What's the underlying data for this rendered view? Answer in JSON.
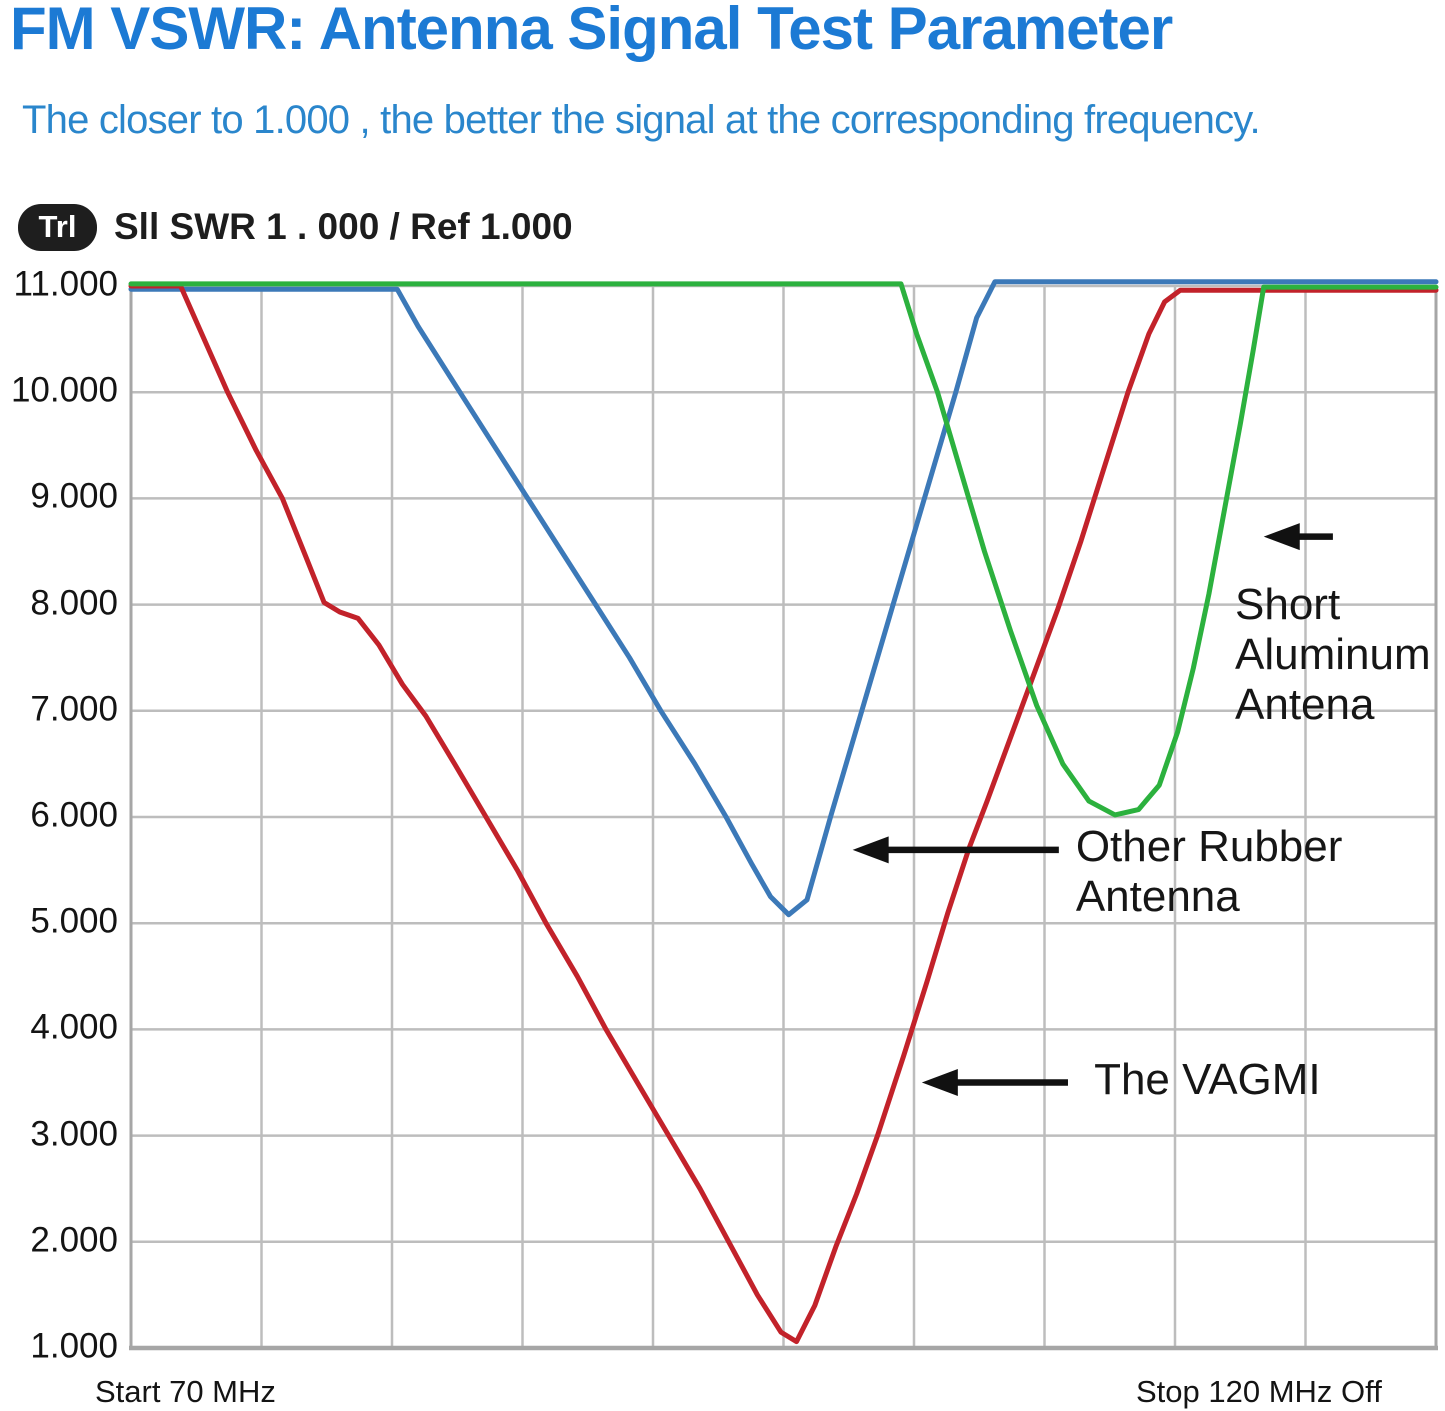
{
  "header": {
    "title": "FM VSWR: Antenna Signal Test Parameter",
    "subtitle": "The closer to 1.000 , the better the signal at the corresponding frequency.",
    "trace_badge": "Trl",
    "trace_info": "Sll SWR 1 . 000 / Ref 1.000"
  },
  "chart_data": {
    "type": "line",
    "title": "FM VSWR: Antenna Signal Test Parameter",
    "x_axis": {
      "unit": "MHz",
      "range": [
        70,
        120
      ],
      "gridline_step": 5,
      "label_start": "Start 70 MHz",
      "label_stop": "Stop 120 MHz Off"
    },
    "y_axis": {
      "range": [
        1,
        11
      ],
      "gridline_step": 1,
      "tick_labels": [
        "11.000",
        "10.000",
        "9.000",
        "8.000",
        "7.000",
        "6.000",
        "5.000",
        "4.000",
        "3.000",
        "2.000",
        "1.000"
      ]
    },
    "grid": true,
    "colors": {
      "grid": "#bdbdbd",
      "axis": "#a6a6a6",
      "annotation": "#111111"
    },
    "series": [
      {
        "id": "other-rubber-antenna",
        "name": "Other Rubber Antenna",
        "color": "#3c79b8",
        "points": [
          [
            70,
            10.97
          ],
          [
            80.2,
            10.97
          ],
          [
            81.0,
            10.62
          ],
          [
            82.6,
            10.0
          ],
          [
            83.9,
            9.5
          ],
          [
            85.2,
            9.0
          ],
          [
            86.5,
            8.5
          ],
          [
            87.8,
            8.0
          ],
          [
            89.1,
            7.5
          ],
          [
            90.3,
            7.0
          ],
          [
            91.6,
            6.5
          ],
          [
            92.8,
            6.0
          ],
          [
            93.8,
            5.55
          ],
          [
            94.5,
            5.25
          ],
          [
            95.2,
            5.08
          ],
          [
            95.9,
            5.22
          ],
          [
            96.8,
            6.0
          ],
          [
            98.0,
            7.0
          ],
          [
            99.2,
            8.0
          ],
          [
            100.4,
            9.0
          ],
          [
            101.6,
            10.0
          ],
          [
            102.4,
            10.7
          ],
          [
            103.1,
            11.04
          ],
          [
            120,
            11.04
          ]
        ]
      },
      {
        "id": "the-vagmi",
        "name": "The VAGMI",
        "color": "#c2222a",
        "points": [
          [
            70,
            11.0
          ],
          [
            71.9,
            11.0
          ],
          [
            73.7,
            10.0
          ],
          [
            74.8,
            9.45
          ],
          [
            75.8,
            9.0
          ],
          [
            76.7,
            8.45
          ],
          [
            77.4,
            8.02
          ],
          [
            78.0,
            7.93
          ],
          [
            78.7,
            7.87
          ],
          [
            79.5,
            7.62
          ],
          [
            80.4,
            7.25
          ],
          [
            81.3,
            6.95
          ],
          [
            82.4,
            6.5
          ],
          [
            83.6,
            6.0
          ],
          [
            84.8,
            5.5
          ],
          [
            85.9,
            5.0
          ],
          [
            87.1,
            4.5
          ],
          [
            88.2,
            4.0
          ],
          [
            89.4,
            3.5
          ],
          [
            90.6,
            3.0
          ],
          [
            91.8,
            2.5
          ],
          [
            92.9,
            2.0
          ],
          [
            94.0,
            1.5
          ],
          [
            94.9,
            1.15
          ],
          [
            95.5,
            1.06
          ],
          [
            96.2,
            1.4
          ],
          [
            97.0,
            1.95
          ],
          [
            97.8,
            2.45
          ],
          [
            98.6,
            3.0
          ],
          [
            99.6,
            3.75
          ],
          [
            100.5,
            4.45
          ],
          [
            101.3,
            5.1
          ],
          [
            102.1,
            5.7
          ],
          [
            102.8,
            6.15
          ],
          [
            103.7,
            6.75
          ],
          [
            104.6,
            7.35
          ],
          [
            105.5,
            7.95
          ],
          [
            106.4,
            8.6
          ],
          [
            107.3,
            9.3
          ],
          [
            108.2,
            10.0
          ],
          [
            109.0,
            10.55
          ],
          [
            109.6,
            10.85
          ],
          [
            110.2,
            10.96
          ],
          [
            120,
            10.96
          ]
        ]
      },
      {
        "id": "short-aluminum-antena",
        "name": "Short Aluminum Antena",
        "color": "#2cb13e",
        "points": [
          [
            70,
            11.02
          ],
          [
            99.5,
            11.02
          ],
          [
            100.1,
            10.55
          ],
          [
            100.9,
            10.0
          ],
          [
            101.8,
            9.25
          ],
          [
            102.7,
            8.5
          ],
          [
            103.7,
            7.75
          ],
          [
            104.7,
            7.05
          ],
          [
            105.7,
            6.5
          ],
          [
            106.7,
            6.15
          ],
          [
            107.7,
            6.02
          ],
          [
            108.6,
            6.07
          ],
          [
            109.4,
            6.3
          ],
          [
            110.1,
            6.8
          ],
          [
            110.7,
            7.4
          ],
          [
            111.3,
            8.1
          ],
          [
            111.9,
            8.9
          ],
          [
            112.5,
            9.7
          ],
          [
            113.0,
            10.4
          ],
          [
            113.4,
            10.99
          ],
          [
            120,
            10.99
          ]
        ]
      }
    ],
    "annotations": [
      {
        "id": "short-aluminum-antena",
        "label": "Short\nAluminum\nAntena",
        "arrow": {
          "tip": [
            113.4,
            8.64
          ],
          "tail": [
            116.05,
            8.64
          ],
          "direction": "left"
        },
        "text_anchor": [
          112.3,
          8.0
        ]
      },
      {
        "id": "other-rubber-antenna",
        "label": "Other Rubber\nAntenna",
        "arrow": {
          "tip": [
            97.65,
            5.69
          ],
          "tail": [
            105.55,
            5.69
          ],
          "direction": "left"
        },
        "text_anchor": [
          106.2,
          5.72
        ]
      },
      {
        "id": "the-vagmi",
        "label": "The VAGMI",
        "arrow": {
          "tip": [
            100.3,
            3.5
          ],
          "tail": [
            105.9,
            3.5
          ],
          "direction": "left"
        },
        "text_anchor": [
          106.9,
          3.52
        ]
      }
    ]
  }
}
